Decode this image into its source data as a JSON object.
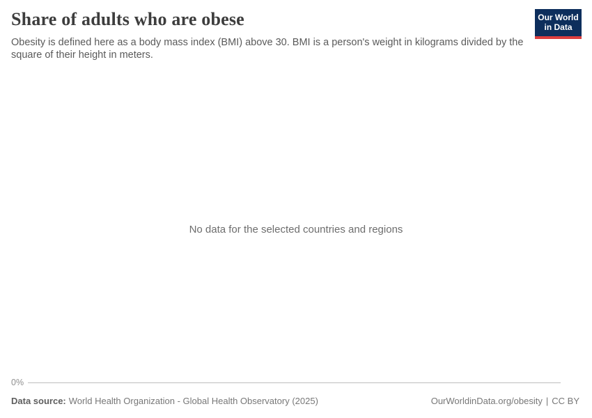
{
  "header": {
    "title": "Share of adults who are obese",
    "subtitle": "Obesity is defined here as a body mass index (BMI) above 30. BMI is a person's weight in kilograms divided by the square of their height in meters.",
    "logo": {
      "line1": "Our World",
      "line2": "in Data"
    }
  },
  "chart": {
    "no_data_message": "No data for the selected countries and regions",
    "y_axis_tick": "0%"
  },
  "footer": {
    "source_label": "Data source:",
    "source_text": "World Health Organization - Global Health Observatory (2025)",
    "url": "OurWorldinData.org/obesity",
    "separator": "|",
    "license": "CC BY"
  },
  "colors": {
    "logo_navy": "#0d2e5c",
    "logo_red": "#dc3e3e",
    "title_text": "#3d3d3d",
    "subtitle_text": "#5a5a5a",
    "no_data_text": "#6d6d6d",
    "axis_text": "#8f8f8f",
    "axis_line": "#bdbdbd",
    "footer_text": "#777777"
  },
  "chart_data": {
    "type": "line",
    "title": "Share of adults who are obese",
    "subtitle": "Obesity is defined here as a body mass index (BMI) above 30. BMI is a person's weight in kilograms divided by the square of their height in meters.",
    "categories": [],
    "series": [],
    "xlabel": "",
    "ylabel": "",
    "y_ticks": [
      "0%"
    ],
    "ylim": [
      0,
      null
    ],
    "grid": false,
    "legend": false,
    "annotations": [
      "No data for the selected countries and regions"
    ]
  }
}
